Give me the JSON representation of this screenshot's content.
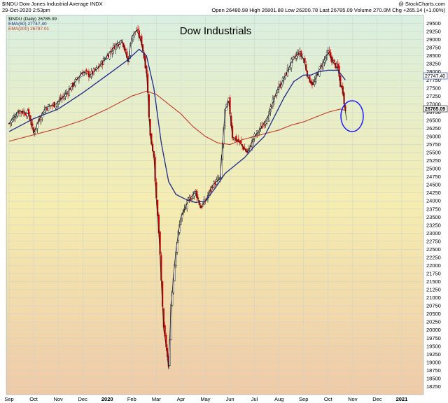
{
  "header": {
    "symbol_line": "$INDU Dow Jones Industrial Average INDX",
    "datetime": "29-Oct-2020 2:53pm",
    "watermark": "@ StockCharts.com",
    "stats": "Open 26480.98  High 26801.88  Low 26200.78  Last 26785.09  Volume 270.0M  Chg +265.14 (+1.00%)"
  },
  "legend": [
    {
      "label": "$INDU (Daily) 26785.09",
      "color": "#000000"
    },
    {
      "label": "EMA(50) 27747.40",
      "color": "#1f2a8c"
    },
    {
      "label": "EMA(200) 26787.01",
      "color": "#c0392b"
    }
  ],
  "price_labels": {
    "ema50": "27747.40",
    "last": "26785.09"
  },
  "colors": {
    "ema50": "#1f2a8c",
    "ema200": "#c0392b",
    "up": "#000000",
    "down": "#cc0000",
    "bg_top": "#d9efe0",
    "bg_mid": "#f5ecb0",
    "bg_bottom": "#efcaa8",
    "circle": "#1a1aff"
  },
  "chart_data": {
    "type": "candlestick",
    "title": "Dow Industrials",
    "x_ticks": [
      "Sep",
      "Oct",
      "Nov",
      "Dec",
      "2020",
      "Feb",
      "Mar",
      "Apr",
      "May",
      "Jun",
      "Jul",
      "Aug",
      "Sep",
      "Oct",
      "Nov",
      "Dec",
      "2021"
    ],
    "ylim": [
      18000,
      29750
    ],
    "y_ticks": [
      18250,
      18500,
      18750,
      19000,
      19250,
      19500,
      19750,
      20000,
      20250,
      20500,
      20750,
      21000,
      21250,
      21500,
      21750,
      22000,
      22250,
      22500,
      22750,
      23000,
      23250,
      23500,
      23750,
      24000,
      24250,
      24500,
      24750,
      25000,
      25250,
      25500,
      25750,
      26000,
      26250,
      26500,
      26750,
      27000,
      27250,
      27500,
      27750,
      28000,
      28250,
      28500,
      28750,
      29000,
      29250,
      29500
    ],
    "close_path": [
      [
        0,
        26400
      ],
      [
        0.4,
        26800
      ],
      [
        0.8,
        26700
      ],
      [
        1.0,
        26100
      ],
      [
        1.2,
        26500
      ],
      [
        1.5,
        26900
      ],
      [
        1.9,
        27000
      ],
      [
        2.3,
        27300
      ],
      [
        2.7,
        27700
      ],
      [
        3.0,
        28000
      ],
      [
        3.3,
        27900
      ],
      [
        3.6,
        28100
      ],
      [
        4.0,
        28500
      ],
      [
        4.3,
        28800
      ],
      [
        4.6,
        29000
      ],
      [
        4.85,
        28300
      ],
      [
        5.0,
        29100
      ],
      [
        5.2,
        29300
      ],
      [
        5.4,
        28900
      ],
      [
        5.6,
        28000
      ],
      [
        5.75,
        26000
      ],
      [
        5.9,
        25400
      ],
      [
        6.0,
        24000
      ],
      [
        6.1,
        23000
      ],
      [
        6.2,
        21500
      ],
      [
        6.3,
        20000
      ],
      [
        6.4,
        19500
      ],
      [
        6.5,
        18800
      ],
      [
        6.6,
        20800
      ],
      [
        6.8,
        22500
      ],
      [
        7.0,
        23500
      ],
      [
        7.3,
        24000
      ],
      [
        7.6,
        24300
      ],
      [
        7.8,
        23800
      ],
      [
        8.0,
        24000
      ],
      [
        8.3,
        24500
      ],
      [
        8.6,
        24700
      ],
      [
        8.8,
        26800
      ],
      [
        8.95,
        27100
      ],
      [
        9.1,
        26000
      ],
      [
        9.4,
        25800
      ],
      [
        9.7,
        25500
      ],
      [
        10.0,
        26000
      ],
      [
        10.3,
        26300
      ],
      [
        10.6,
        26700
      ],
      [
        10.9,
        27400
      ],
      [
        11.2,
        27800
      ],
      [
        11.5,
        28300
      ],
      [
        11.8,
        28600
      ],
      [
        12.0,
        28400
      ],
      [
        12.2,
        27800
      ],
      [
        12.4,
        27600
      ],
      [
        12.6,
        28000
      ],
      [
        12.8,
        28300
      ],
      [
        13.0,
        28600
      ],
      [
        13.2,
        28300
      ],
      [
        13.4,
        28100
      ],
      [
        13.5,
        27600
      ],
      [
        13.6,
        27400
      ],
      [
        13.75,
        26500
      ]
    ],
    "ema50": [
      [
        0,
        26150
      ],
      [
        1,
        26550
      ],
      [
        2,
        26850
      ],
      [
        3,
        27350
      ],
      [
        4,
        27900
      ],
      [
        4.8,
        28350
      ],
      [
        5.3,
        28700
      ],
      [
        5.6,
        28500
      ],
      [
        5.9,
        27500
      ],
      [
        6.2,
        25800
      ],
      [
        6.5,
        24600
      ],
      [
        6.8,
        24200
      ],
      [
        7.2,
        24050
      ],
      [
        7.6,
        23950
      ],
      [
        8.0,
        24000
      ],
      [
        8.4,
        24400
      ],
      [
        8.8,
        24850
      ],
      [
        9.2,
        25100
      ],
      [
        9.6,
        25350
      ],
      [
        10.0,
        25700
      ],
      [
        10.4,
        26000
      ],
      [
        10.8,
        26600
      ],
      [
        11.2,
        27200
      ],
      [
        11.6,
        27700
      ],
      [
        12.0,
        27900
      ],
      [
        12.3,
        27900
      ],
      [
        12.6,
        28000
      ],
      [
        13.0,
        28050
      ],
      [
        13.4,
        28050
      ],
      [
        13.7,
        27750
      ]
    ],
    "ema200": [
      [
        0,
        25850
      ],
      [
        1,
        26050
      ],
      [
        2,
        26250
      ],
      [
        3,
        26500
      ],
      [
        4,
        26850
      ],
      [
        5,
        27250
      ],
      [
        5.6,
        27400
      ],
      [
        6.0,
        27300
      ],
      [
        6.5,
        27000
      ],
      [
        7,
        26700
      ],
      [
        7.5,
        26300
      ],
      [
        8.0,
        26000
      ],
      [
        8.5,
        25800
      ],
      [
        9.0,
        25750
      ],
      [
        9.5,
        25900
      ],
      [
        10.0,
        26000
      ],
      [
        10.5,
        26100
      ],
      [
        11.0,
        26200
      ],
      [
        11.5,
        26350
      ],
      [
        12.0,
        26450
      ],
      [
        12.5,
        26600
      ],
      [
        13.0,
        26750
      ],
      [
        13.5,
        26850
      ],
      [
        13.75,
        26790
      ]
    ]
  }
}
